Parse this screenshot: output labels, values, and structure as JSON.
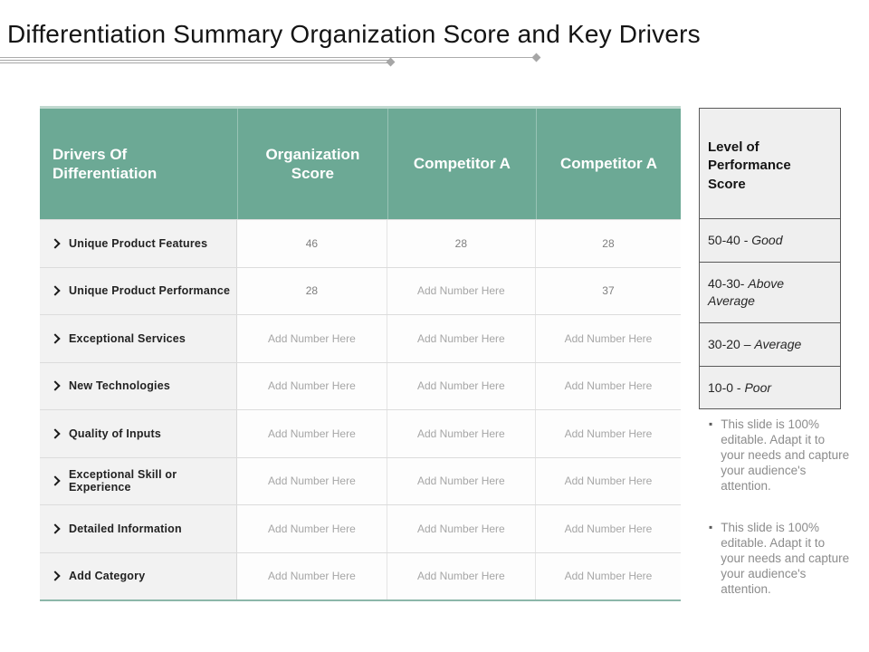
{
  "slide": {
    "title": "Differentiation Summary Organization Score and Key Drivers"
  },
  "table": {
    "headers": [
      "Drivers Of Differentiation",
      "Organization Score",
      "Competitor A",
      "Competitor A"
    ],
    "rows": [
      {
        "label": "Unique Product Features",
        "values": [
          "46",
          "28",
          "28"
        ]
      },
      {
        "label": "Unique Product Performance",
        "values": [
          "28",
          "Add Number Here",
          "37"
        ]
      },
      {
        "label": "Exceptional Services",
        "values": [
          "Add Number Here",
          "Add Number Here",
          "Add Number Here"
        ]
      },
      {
        "label": "New Technologies",
        "values": [
          "Add Number Here",
          "Add Number Here",
          "Add Number Here"
        ]
      },
      {
        "label": "Quality of Inputs",
        "values": [
          "Add Number Here",
          "Add Number Here",
          "Add Number Here"
        ]
      },
      {
        "label": "Exceptional Skill or Experience",
        "values": [
          "Add Number Here",
          "Add Number Here",
          "Add Number Here"
        ]
      },
      {
        "label": "Detailed Information",
        "values": [
          "Add Number Here",
          "Add Number Here",
          "Add Number Here"
        ]
      },
      {
        "label": "Add Category",
        "values": [
          "Add Number Here",
          "Add Number Here",
          "Add Number Here"
        ]
      }
    ]
  },
  "legend": {
    "title": "Level of Performance Score",
    "rows": [
      {
        "range": "50-40  -",
        "label": "Good"
      },
      {
        "range": "40-30-",
        "label": "Above Average"
      },
      {
        "range": "30-20 –",
        "label": "Average"
      },
      {
        "range": "10-0  -",
        "label": "Poor"
      }
    ]
  },
  "notes": {
    "items": [
      "This slide is 100% editable. Adapt it to your needs and capture your audience's attention.",
      "This slide is 100% editable. Adapt it to your needs and capture your audience's attention."
    ]
  },
  "icons": {
    "row_bullet": "arrowhead-right",
    "note_bullet_glyph": "▪"
  },
  "colors": {
    "header_teal": "#6CA995",
    "table_border_top": "#C0D8CF",
    "table_border_bottom": "#8CB7A9",
    "label_cell_bg": "#F2F2F2",
    "value_text": "#7F7F7F",
    "placeholder_text": "#A6A6A6",
    "divider_gray": "#A6A6A6",
    "legend_border": "#595959",
    "legend_bg": "#EFEFEF",
    "note_text": "#8C8C8C"
  }
}
